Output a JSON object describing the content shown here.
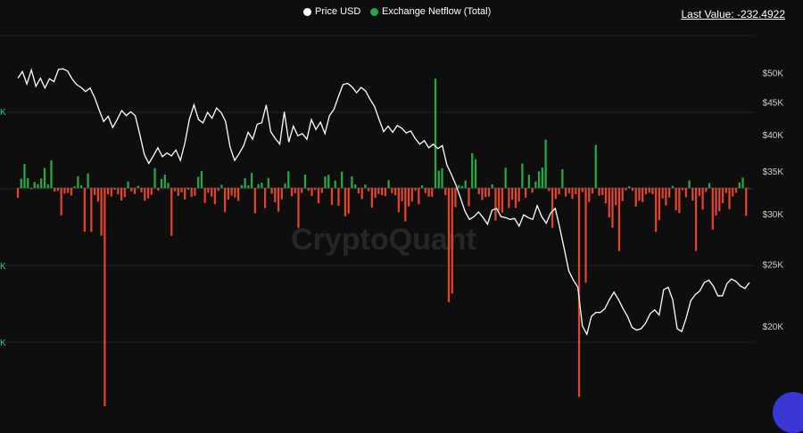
{
  "legend": {
    "price_label": "Price USD",
    "netflow_label": "Exchange Netflow (Total)"
  },
  "last_value": "Last Value: -232.4922",
  "watermark": "CryptoQuant",
  "colors": {
    "background": "#0e0e0f",
    "price_line": "#ffffff",
    "inflow_bar": "#27a844",
    "outflow_bar": "#e2442c",
    "left_tick": "#2ecc71",
    "right_tick": "#cfcfcf",
    "chat_bubble": "#3a36d6"
  },
  "chart_data": {
    "type": "bar",
    "series": [
      {
        "name": "Price USD",
        "type": "line",
        "axis": "right",
        "values": [
          49000,
          50200,
          48000,
          50500,
          47600,
          49000,
          47300,
          48900,
          48400,
          50600,
          50700,
          50300,
          48900,
          47900,
          47400,
          46700,
          47300,
          45700,
          43700,
          41900,
          42700,
          41000,
          42200,
          43600,
          42800,
          43400,
          42800,
          40000,
          37200,
          36000,
          37000,
          38100,
          36900,
          37400,
          37000,
          37800,
          36400,
          38800,
          42300,
          44500,
          42200,
          41700,
          43300,
          42400,
          44000,
          43300,
          41900,
          38200,
          36400,
          37300,
          38400,
          40300,
          39300,
          41500,
          41700,
          44500,
          40400,
          39400,
          38600,
          43400,
          38900,
          41200,
          39800,
          40100,
          39300,
          42200,
          40700,
          41800,
          40100,
          42800,
          43800,
          45900,
          47900,
          48100,
          47500,
          46500,
          47400,
          46800,
          45400,
          44200,
          42200,
          40400,
          41200,
          40300,
          41300,
          40900,
          40200,
          40500,
          39400,
          38600,
          39100,
          38100,
          38600,
          38000,
          38400,
          35800,
          34600,
          33300,
          31800,
          30300,
          29400,
          29700,
          30200,
          29600,
          28900,
          30400,
          30600,
          29700,
          29600,
          29400,
          29500,
          28700,
          29900,
          29600,
          29400,
          30900,
          29700,
          29000,
          30100,
          30600,
          28500,
          26400,
          24400,
          23600,
          23000,
          20000,
          19400,
          20700,
          21000,
          21000,
          21300,
          22000,
          22600,
          22000,
          21300,
          20700,
          19900,
          19700,
          19800,
          20200,
          20900,
          21200,
          20800,
          22800,
          23000,
          22000,
          19800,
          19600,
          20600,
          21900,
          22400,
          22700,
          23400,
          23600,
          23100,
          22300,
          22300,
          23300,
          23700,
          23500,
          23100,
          22900,
          23400
        ]
      },
      {
        "name": "Exchange Netflow (Total)",
        "type": "bar",
        "axis": "left",
        "values": [
          -6300,
          6000,
          15500,
          6400,
          -700,
          3900,
          2500,
          6100,
          12900,
          2400,
          17800,
          -2300,
          -1800,
          -17700,
          -3700,
          -3200,
          -4800,
          900,
          7500,
          1800,
          -28200,
          9400,
          -28300,
          -4500,
          -8800,
          -30800,
          -143400,
          -4100,
          -5500,
          -1200,
          -4100,
          -8100,
          -5800,
          4200,
          -2200,
          -3900,
          1400,
          -2800,
          -8200,
          -6700,
          -4500,
          12700,
          -1700,
          5800,
          8700,
          3300,
          -30900,
          -2100,
          -5100,
          -2700,
          -7400,
          -1100,
          -5700,
          -5000,
          7200,
          11000,
          -9600,
          -3000,
          -5600,
          -10400,
          -1800,
          2100,
          -15600,
          -7500,
          -5000,
          -6100,
          -8300,
          1900,
          6300,
          1700,
          9700,
          -16300,
          2500,
          3400,
          -13000,
          6500,
          -3600,
          -9200,
          -15200,
          -7300,
          3000,
          10800,
          -5300,
          -3400,
          -25700,
          -3200,
          8700,
          -1800,
          -5200,
          -1300,
          -9900,
          -3300,
          7400,
          8500,
          -10900,
          4800,
          -11500,
          10500,
          -18300,
          -16500,
          7500,
          2300,
          -3500,
          -7200,
          2200,
          -2100,
          -12700,
          -6400,
          -3900,
          -4700,
          -5300,
          5100,
          -3300,
          -4700,
          -15600,
          -8600,
          -21600,
          -11900,
          -8800,
          -1700,
          -10500,
          1700,
          -3300,
          -5600,
          -5600,
          70500,
          11200,
          12700,
          -4700,
          -73600,
          -68100,
          -12400,
          2000,
          1200,
          4800,
          -11800,
          22500,
          18600,
          -4000,
          -7600,
          -5800,
          -5500,
          2400,
          -21000,
          -14600,
          -15900,
          13100,
          -12900,
          -7600,
          -12900,
          -8800,
          15800,
          -6200,
          8600,
          -3000,
          4200,
          10700,
          13200,
          31200,
          -2000,
          -25700,
          -7100,
          -4100,
          12100,
          -5500,
          -3400,
          -7000,
          -4000,
          -134700,
          -2600,
          -61100,
          -9000,
          -3600,
          27800,
          -5000,
          -4600,
          -9900,
          -19000,
          -25600,
          -11100,
          -40700,
          -8400,
          -1500,
          1100,
          -1800,
          -12000,
          -8200,
          -9100,
          -4100,
          -3100,
          -4100,
          -28300,
          -20600,
          -6700,
          -11200,
          -6100,
          1400,
          -14400,
          -16100,
          -1400,
          -6000,
          4900,
          -8100,
          -40600,
          -5100,
          -14000,
          -2500,
          3200,
          -26900,
          -17800,
          -15000,
          -9800,
          -3200,
          -13600,
          -5500,
          -3100,
          3600,
          6700,
          -18000,
          -232.4922
        ]
      }
    ],
    "y_right": {
      "ticks": [
        "$20K",
        "$25K",
        "$30K",
        "$35K",
        "$40K",
        "$45K",
        "$50K"
      ],
      "scale": "log",
      "range": [
        18500,
        55000
      ]
    },
    "y_left": {
      "tick_labels": [
        "K",
        "K",
        "K"
      ],
      "range": [
        -150000,
        100000
      ]
    },
    "grid": true,
    "legend_position": "top-center"
  }
}
